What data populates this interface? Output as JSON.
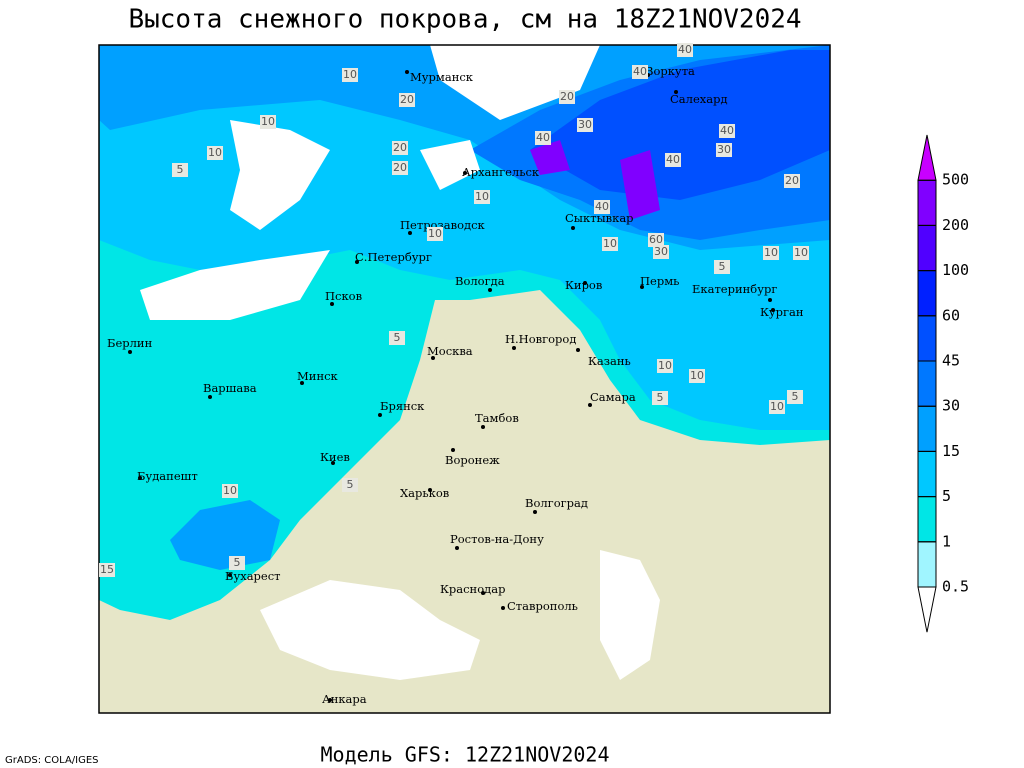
{
  "header": {
    "title": "Высота снежного покрова, см на 18Z21NOV2024"
  },
  "footer": {
    "model": "Модель GFS: 12Z21NOV2024",
    "credit": "GrADS: COLA/IGES"
  },
  "cities": [
    "Мурманск",
    "Архангельск",
    "Воркута",
    "Салехард",
    "Сыктывкар",
    "Петрозаводск",
    "С.Петербург",
    "Вологда",
    "Киров",
    "Пермь",
    "Екатеринбург",
    "Курган",
    "Псков",
    "Берлин",
    "Варшава",
    "Минск",
    "Москва",
    "Н.Новгород",
    "Казань",
    "Самара",
    "Брянск",
    "Тамбов",
    "Воронеж",
    "Киев",
    "Харьков",
    "Волгоград",
    "Будапешт",
    "Ростов-на-Дону",
    "Бухарест",
    "Краснодар",
    "Ставрополь",
    "Анкара"
  ],
  "contour_labels": [
    40,
    40,
    10,
    20,
    10,
    10,
    5,
    20,
    10,
    30,
    40,
    20,
    40,
    30,
    40,
    20,
    20,
    40,
    10,
    10,
    60,
    30,
    10,
    10,
    5,
    5,
    10,
    10,
    5,
    10,
    5,
    5,
    10,
    5,
    15
  ],
  "colorbar": {
    "levels": [
      0.5,
      1,
      5,
      15,
      30,
      45,
      60,
      100,
      200,
      500
    ],
    "colors": [
      "#ffffff",
      "#a0f5ff",
      "#00e6e6",
      "#00c8ff",
      "#00a0ff",
      "#0078ff",
      "#0050ff",
      "#0020ff",
      "#5000ff",
      "#8000ff",
      "#c800ff"
    ]
  }
}
